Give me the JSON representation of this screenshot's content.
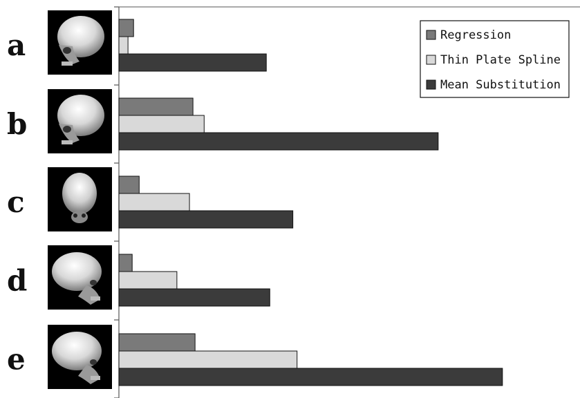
{
  "chart_data": {
    "type": "bar",
    "orientation": "horizontal",
    "title": "",
    "xlabel": "",
    "ylabel": "",
    "categories": [
      "a",
      "b",
      "c",
      "d",
      "e"
    ],
    "series": [
      {
        "name": "Regression",
        "values": [
          2.1,
          10.6,
          2.9,
          1.9,
          10.9
        ]
      },
      {
        "name": "Thin Plate Spline",
        "values": [
          1.3,
          12.2,
          10.1,
          8.3,
          25.5
        ]
      },
      {
        "name": "Mean Substitution",
        "values": [
          21.1,
          45.7,
          24.9,
          21.6,
          54.9
        ]
      }
    ],
    "xlim": [
      0,
      66
    ],
    "grid": false,
    "legend_position": "top-right",
    "colors": {
      "Regression": "#7a7a7a",
      "Thin Plate Spline": "#d9d9d9",
      "Mean Substitution": "#3b3b3b"
    },
    "thumbnails": [
      {
        "icon": "skull-oblique-icon"
      },
      {
        "icon": "skull-oblique-icon"
      },
      {
        "icon": "skull-frontal-icon"
      },
      {
        "icon": "skull-lateral-icon"
      },
      {
        "icon": "skull-lateral-icon"
      }
    ]
  }
}
